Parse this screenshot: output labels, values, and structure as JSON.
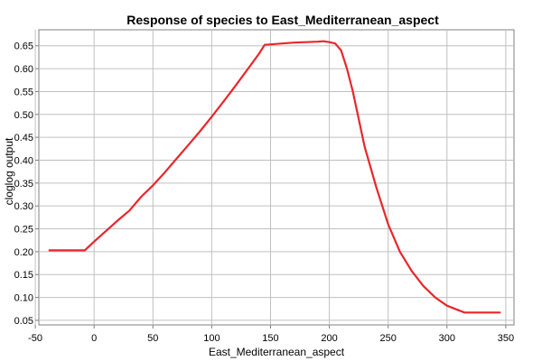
{
  "chart_data": {
    "type": "line",
    "title": "Response of species to East_Mediterranean_aspect",
    "xlabel": "East_Mediterranean_aspect",
    "ylabel": "cloglog output",
    "xlim": [
      -47,
      357
    ],
    "ylim": [
      0.04,
      0.685
    ],
    "x_ticks": [
      -50,
      0,
      50,
      100,
      150,
      200,
      250,
      300,
      350
    ],
    "x_tick_labels": [
      "-50",
      "0",
      "50",
      "100",
      "150",
      "200",
      "250",
      "300",
      "350"
    ],
    "y_ticks": [
      0.05,
      0.1,
      0.15,
      0.2,
      0.25,
      0.3,
      0.35,
      0.4,
      0.45,
      0.5,
      0.55,
      0.6,
      0.65
    ],
    "y_tick_labels": [
      "0.05",
      "0.10",
      "0.15",
      "0.20",
      "0.25",
      "0.30",
      "0.35",
      "0.40",
      "0.45",
      "0.50",
      "0.55",
      "0.60",
      "0.65"
    ],
    "grid": true,
    "legend": "none",
    "series": [
      {
        "color": "#e8262b",
        "x": [
          -38,
          -8,
          0,
          10,
          20,
          30,
          40,
          50,
          60,
          70,
          80,
          90,
          100,
          110,
          120,
          130,
          140,
          145,
          150,
          160,
          170,
          180,
          190,
          195,
          200,
          205,
          210,
          215,
          220,
          230,
          240,
          250,
          260,
          270,
          280,
          290,
          300,
          310,
          315,
          345
        ],
        "y": [
          0.203,
          0.203,
          0.222,
          0.245,
          0.268,
          0.29,
          0.32,
          0.345,
          0.373,
          0.403,
          0.433,
          0.463,
          0.495,
          0.528,
          0.562,
          0.597,
          0.632,
          0.652,
          0.653,
          0.655,
          0.657,
          0.658,
          0.659,
          0.66,
          0.658,
          0.655,
          0.64,
          0.6,
          0.55,
          0.43,
          0.34,
          0.26,
          0.2,
          0.158,
          0.125,
          0.1,
          0.082,
          0.072,
          0.067,
          0.067
        ]
      }
    ]
  }
}
